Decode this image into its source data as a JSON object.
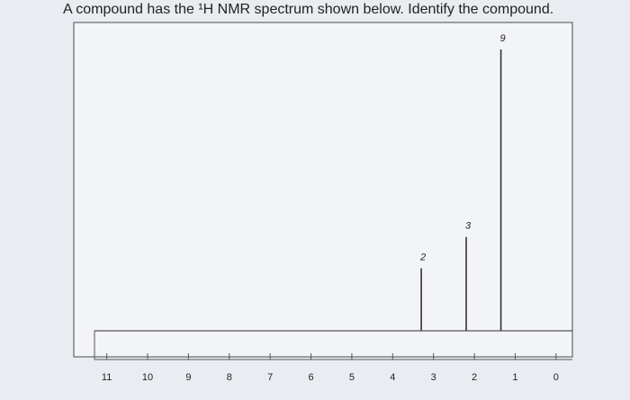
{
  "chart_data": {
    "type": "stem",
    "title": "A compound has the ¹H NMR spectrum shown below. Identify the compound.",
    "x": [
      3.3,
      2.2,
      1.35
    ],
    "values": [
      2,
      3,
      9
    ],
    "color": "#333333",
    "xlim": [
      11.3,
      -0.4
    ],
    "xticks": [
      11,
      10,
      9,
      8,
      7,
      6,
      5,
      4,
      3,
      2,
      1,
      0
    ]
  }
}
